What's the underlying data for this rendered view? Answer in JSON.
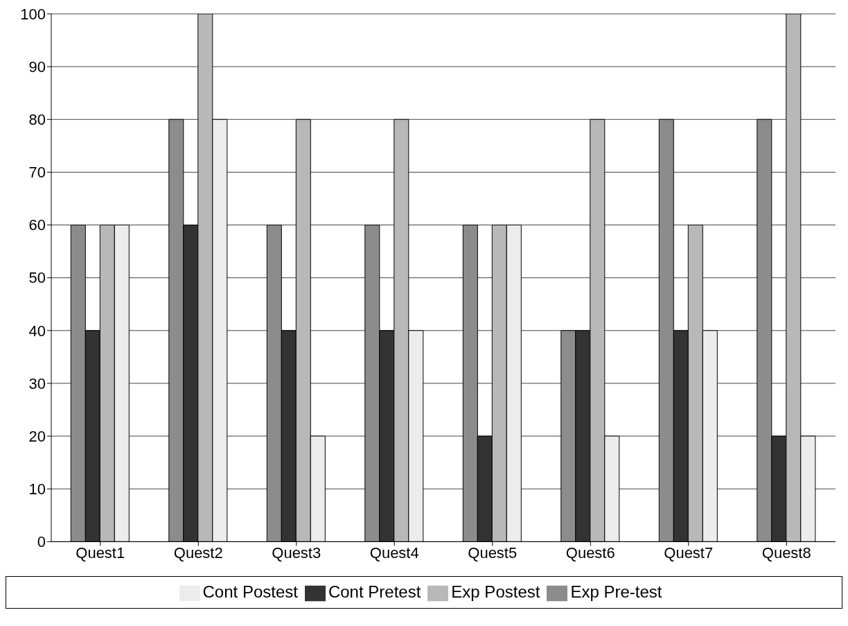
{
  "chart_data": {
    "type": "bar",
    "categories": [
      "Quest1",
      "Quest2",
      "Quest3",
      "Quest4",
      "Quest5",
      "Quest6",
      "Quest7",
      "Quest8"
    ],
    "series": [
      {
        "name": "Exp Pre-test",
        "color": "#8c8c8c",
        "values": [
          60,
          80,
          60,
          60,
          60,
          40,
          80,
          80
        ]
      },
      {
        "name": "Cont Pretest",
        "color": "#333333",
        "values": [
          40,
          60,
          40,
          40,
          20,
          40,
          40,
          20
        ]
      },
      {
        "name": "Exp Postest",
        "color": "#b8b8b8",
        "values": [
          60,
          100,
          80,
          80,
          60,
          80,
          60,
          100
        ]
      },
      {
        "name": "Cont Postest",
        "color": "#ececec",
        "values": [
          60,
          80,
          20,
          40,
          60,
          20,
          40,
          20
        ]
      }
    ],
    "ylim": [
      0,
      100
    ],
    "yticks": [
      0,
      10,
      20,
      30,
      40,
      50,
      60,
      70,
      80,
      90,
      100
    ],
    "grid": "y",
    "legend": "bottom"
  }
}
